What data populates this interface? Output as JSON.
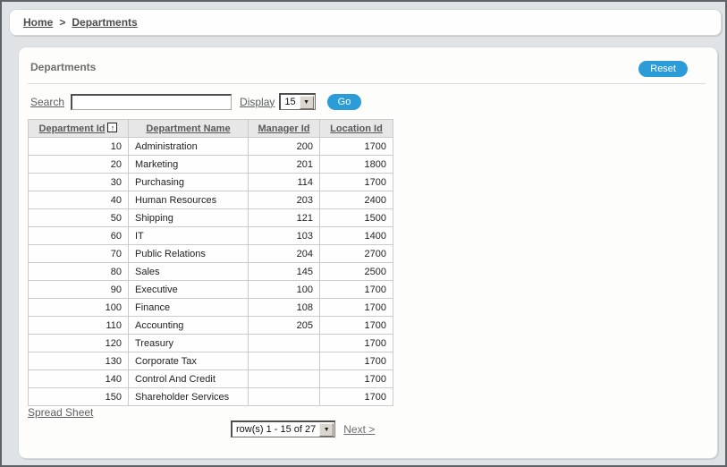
{
  "breadcrumb": {
    "home": "Home",
    "separator": ">",
    "current": "Departments"
  },
  "region": {
    "title": "Departments",
    "reset_button": "Reset"
  },
  "toolbar": {
    "search_label": "Search",
    "search_value": "",
    "display_label": "Display",
    "display_value": "15",
    "go_button": "Go"
  },
  "table": {
    "sort_icon_glyph": "↑",
    "columns": [
      {
        "label": "Department Id",
        "align": "right",
        "sorted": "ascending"
      },
      {
        "label": "Department Name",
        "align": "left",
        "sorted": ""
      },
      {
        "label": "Manager Id",
        "align": "right",
        "sorted": ""
      },
      {
        "label": "Location Id",
        "align": "right",
        "sorted": ""
      }
    ],
    "rows": [
      [
        "10",
        "Administration",
        "200",
        "1700"
      ],
      [
        "20",
        "Marketing",
        "201",
        "1800"
      ],
      [
        "30",
        "Purchasing",
        "114",
        "1700"
      ],
      [
        "40",
        "Human Resources",
        "203",
        "2400"
      ],
      [
        "50",
        "Shipping",
        "121",
        "1500"
      ],
      [
        "60",
        "IT",
        "103",
        "1400"
      ],
      [
        "70",
        "Public Relations",
        "204",
        "2700"
      ],
      [
        "80",
        "Sales",
        "145",
        "2500"
      ],
      [
        "90",
        "Executive",
        "100",
        "1700"
      ],
      [
        "100",
        "Finance",
        "108",
        "1700"
      ],
      [
        "110",
        "Accounting",
        "205",
        "1700"
      ],
      [
        "120",
        "Treasury",
        "",
        "1700"
      ],
      [
        "130",
        "Corporate Tax",
        "",
        "1700"
      ],
      [
        "140",
        "Control And Credit",
        "",
        "1700"
      ],
      [
        "150",
        "Shareholder Services",
        "",
        "1700"
      ]
    ]
  },
  "footer": {
    "spreadsheet_link": "Spread Sheet",
    "pagination_value": "row(s) 1 - 15 of 27",
    "next_link": "Next >"
  },
  "icons": {
    "dropdown_arrow": "▼"
  },
  "colors": {
    "accent_blue": "#2b9cd8",
    "page_bg": "#dfe3e5",
    "region_bg": "#fdfefc",
    "table_header_bg": "#e7e7e7"
  }
}
